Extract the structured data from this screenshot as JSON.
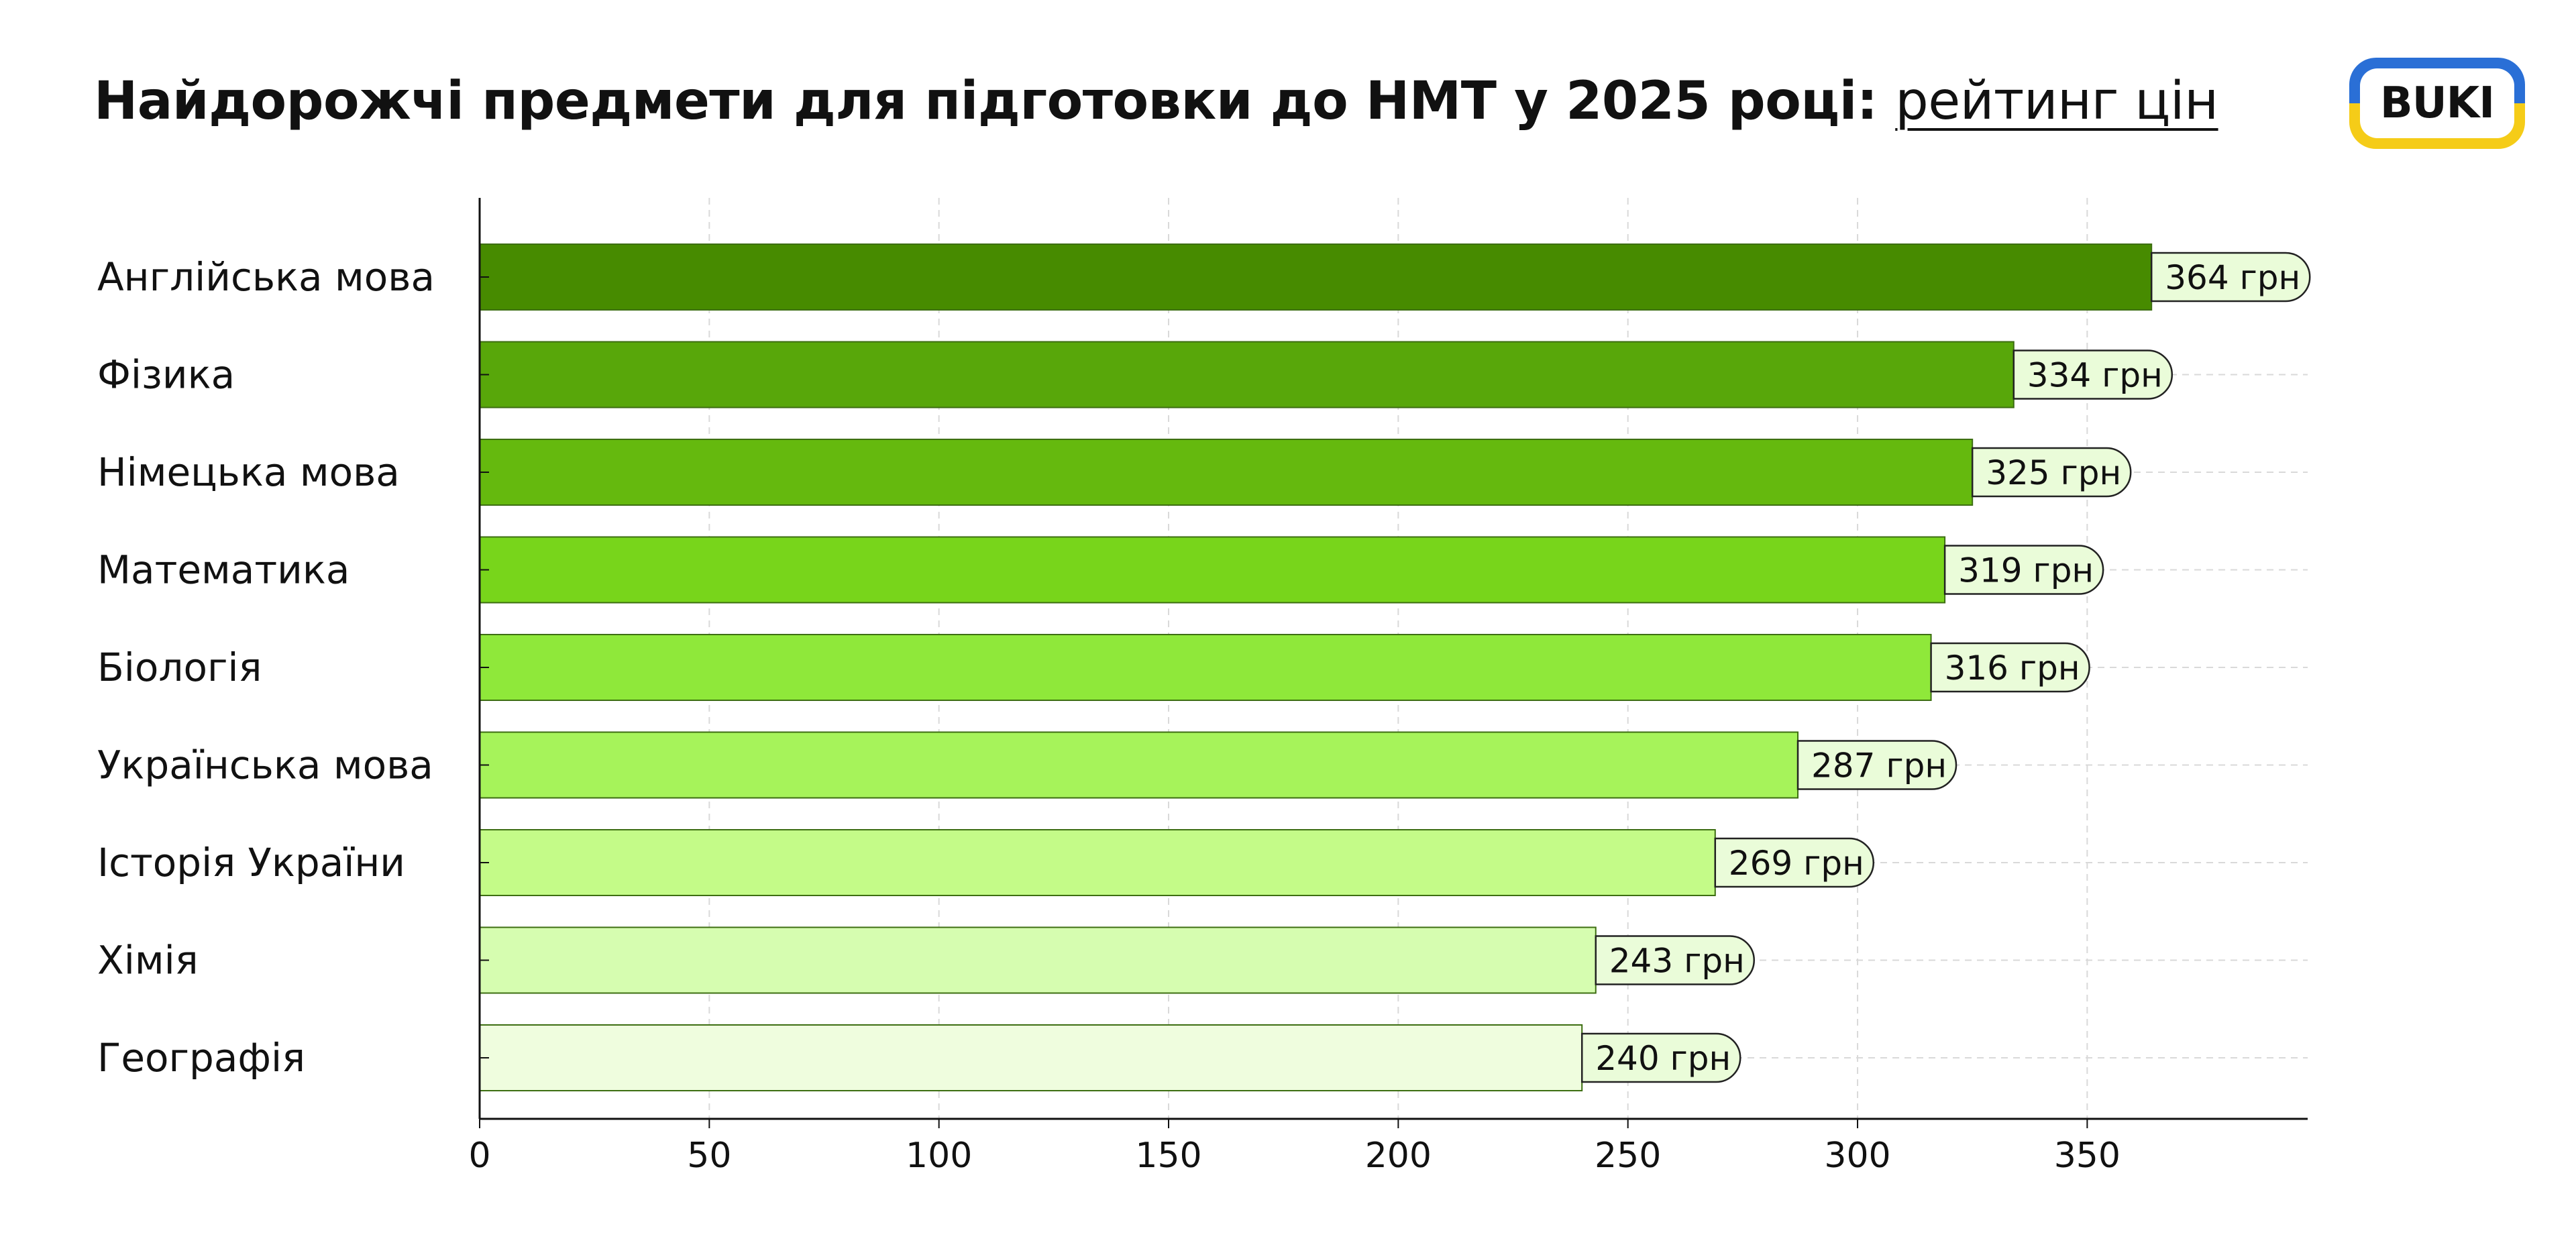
{
  "header": {
    "title_main": "Найдорожчі предмети для підготовки до НМТ у 2025 році: ",
    "title_sub": "рейтинг цін",
    "logo_text": "BUKI"
  },
  "colors": {
    "logo_top": "#2a6fd6",
    "logo_bottom": "#f5cc18",
    "label_fill": "#eafcd9",
    "grid": "#d9d9d9"
  },
  "chart_data": {
    "type": "bar",
    "orientation": "horizontal",
    "categories": [
      "Англійська мова",
      "Фізика",
      "Німецька мова",
      "Математика",
      "Біологія",
      "Українська мова",
      "Історія України",
      "Хімія",
      "Географія"
    ],
    "values": [
      364,
      334,
      325,
      319,
      316,
      287,
      269,
      243,
      240
    ],
    "value_labels": [
      "364 грн",
      "334 грн",
      "325 грн",
      "319 грн",
      "316 грн",
      "287 грн",
      "269 грн",
      "243 грн",
      "240 грн"
    ],
    "bar_colors": [
      "#478b00",
      "#58a70a",
      "#65b90e",
      "#78d51b",
      "#8fe83a",
      "#a6f35a",
      "#c4fb88",
      "#d6fdb0",
      "#effdde"
    ],
    "xticks": [
      0,
      50,
      100,
      150,
      200,
      250,
      300,
      350
    ],
    "xlim": [
      0,
      398
    ],
    "grid": true,
    "legend": "none"
  }
}
